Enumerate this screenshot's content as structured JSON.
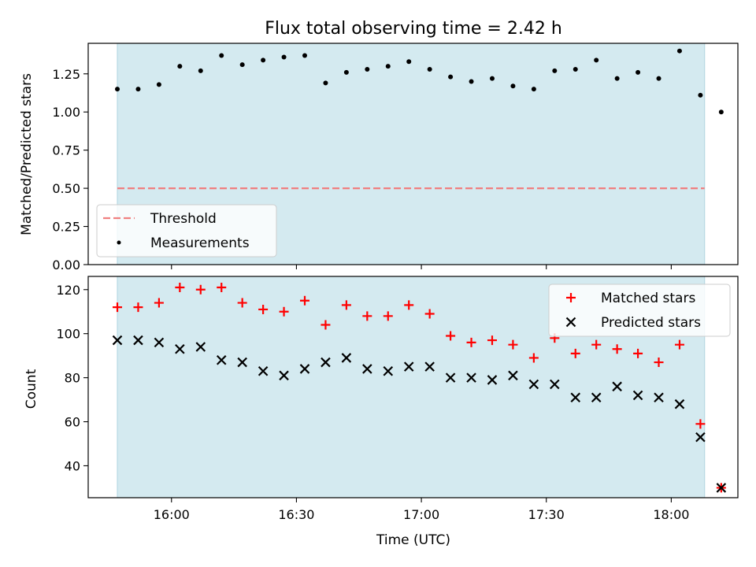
{
  "title": "Flux total observing time = 2.42 h",
  "colors": {
    "shade": "#d4eaf0",
    "shade_edge": "#b8d9e3",
    "threshold": "#f08080",
    "measurement": "#000000",
    "matched": "#ff0000",
    "predicted": "#000000"
  },
  "chart_data": [
    {
      "type": "scatter",
      "panel": "top",
      "ylabel": "Matched/Predicted stars",
      "ylim": [
        0,
        1.45
      ],
      "yticks": [
        0.0,
        0.25,
        0.5,
        0.75,
        1.0,
        1.25
      ],
      "ytick_labels": [
        "0.00",
        "0.25",
        "0.50",
        "0.75",
        "1.00",
        "1.25"
      ],
      "xlim": [
        "15:40",
        "18:16"
      ],
      "shaded_span": [
        "15:47",
        "18:08"
      ],
      "threshold": 0.5,
      "legend": {
        "placement": "lower-left",
        "entries": [
          "Threshold",
          "Measurements"
        ]
      },
      "x": [
        "15:47",
        "15:52",
        "15:57",
        "16:02",
        "16:07",
        "16:12",
        "16:17",
        "16:22",
        "16:27",
        "16:32",
        "16:37",
        "16:42",
        "16:47",
        "16:52",
        "16:57",
        "17:02",
        "17:07",
        "17:12",
        "17:17",
        "17:22",
        "17:27",
        "17:32",
        "17:37",
        "17:42",
        "17:47",
        "17:52",
        "17:57",
        "18:02",
        "18:07",
        "18:12"
      ],
      "series": [
        {
          "name": "Measurements",
          "marker": "dot",
          "points": [
            [
              "15:47",
              1.15
            ],
            [
              "15:52",
              1.15
            ],
            [
              "15:57",
              1.18
            ],
            [
              "16:02",
              1.3
            ],
            [
              "16:07",
              1.27
            ],
            [
              "16:12",
              1.37
            ],
            [
              "16:17",
              1.31
            ],
            [
              "16:22",
              1.34
            ],
            [
              "16:27",
              1.36
            ],
            [
              "16:32",
              1.37
            ],
            [
              "16:37",
              1.19
            ],
            [
              "16:42",
              1.26
            ],
            [
              "16:47",
              1.28
            ],
            [
              "16:52",
              1.3
            ],
            [
              "16:57",
              1.33
            ],
            [
              "17:02",
              1.28
            ],
            [
              "17:07",
              1.23
            ],
            [
              "17:12",
              1.2
            ],
            [
              "17:17",
              1.22
            ],
            [
              "17:22",
              1.17
            ],
            [
              "17:27",
              1.15
            ],
            [
              "17:32",
              1.27
            ],
            [
              "17:37",
              1.28
            ],
            [
              "17:42",
              1.34
            ],
            [
              "17:47",
              1.22
            ],
            [
              "17:52",
              1.26
            ],
            [
              "17:57",
              1.22
            ],
            [
              "18:02",
              1.4
            ],
            [
              "18:07",
              1.11
            ],
            [
              "18:12",
              1.0
            ]
          ]
        }
      ]
    },
    {
      "type": "scatter",
      "panel": "bottom",
      "xlabel": "Time (UTC)",
      "ylabel": "Count",
      "ylim": [
        25.5,
        126
      ],
      "yticks": [
        40,
        60,
        80,
        100,
        120
      ],
      "ytick_labels": [
        "40",
        "60",
        "80",
        "100",
        "120"
      ],
      "xlim": [
        "15:40",
        "18:16"
      ],
      "xticks": [
        "16:00",
        "16:30",
        "17:00",
        "17:30",
        "18:00"
      ],
      "xtick_labels": [
        "16:00",
        "16:30",
        "17:00",
        "17:30",
        "18:00"
      ],
      "shaded_span": [
        "15:47",
        "18:08"
      ],
      "legend": {
        "placement": "top-right",
        "entries": [
          "Matched stars",
          "Predicted stars"
        ]
      },
      "series": [
        {
          "name": "Matched stars",
          "marker": "plus",
          "points": [
            [
              "15:47",
              112
            ],
            [
              "15:52",
              112
            ],
            [
              "15:57",
              114
            ],
            [
              "16:02",
              121
            ],
            [
              "16:07",
              120
            ],
            [
              "16:12",
              121
            ],
            [
              "16:17",
              114
            ],
            [
              "16:22",
              111
            ],
            [
              "16:27",
              110
            ],
            [
              "16:32",
              115
            ],
            [
              "16:37",
              104
            ],
            [
              "16:42",
              113
            ],
            [
              "16:47",
              108
            ],
            [
              "16:52",
              108
            ],
            [
              "16:57",
              113
            ],
            [
              "17:02",
              109
            ],
            [
              "17:07",
              99
            ],
            [
              "17:12",
              96
            ],
            [
              "17:17",
              97
            ],
            [
              "17:22",
              95
            ],
            [
              "17:27",
              89
            ],
            [
              "17:32",
              98
            ],
            [
              "17:37",
              91
            ],
            [
              "17:42",
              95
            ],
            [
              "17:47",
              93
            ],
            [
              "17:52",
              91
            ],
            [
              "17:57",
              87
            ],
            [
              "18:02",
              95
            ],
            [
              "18:07",
              59
            ],
            [
              "18:12",
              30
            ]
          ]
        },
        {
          "name": "Predicted stars",
          "marker": "x",
          "points": [
            [
              "15:47",
              97
            ],
            [
              "15:52",
              97
            ],
            [
              "15:57",
              96
            ],
            [
              "16:02",
              93
            ],
            [
              "16:07",
              94
            ],
            [
              "16:12",
              88
            ],
            [
              "16:17",
              87
            ],
            [
              "16:22",
              83
            ],
            [
              "16:27",
              81
            ],
            [
              "16:32",
              84
            ],
            [
              "16:37",
              87
            ],
            [
              "16:42",
              89
            ],
            [
              "16:47",
              84
            ],
            [
              "16:52",
              83
            ],
            [
              "16:57",
              85
            ],
            [
              "17:02",
              85
            ],
            [
              "17:07",
              80
            ],
            [
              "17:12",
              80
            ],
            [
              "17:17",
              79
            ],
            [
              "17:22",
              81
            ],
            [
              "17:27",
              77
            ],
            [
              "17:32",
              77
            ],
            [
              "17:37",
              71
            ],
            [
              "17:42",
              71
            ],
            [
              "17:47",
              76
            ],
            [
              "17:52",
              72
            ],
            [
              "17:57",
              71
            ],
            [
              "18:02",
              68
            ],
            [
              "18:07",
              53
            ],
            [
              "18:12",
              30
            ]
          ]
        }
      ]
    }
  ]
}
